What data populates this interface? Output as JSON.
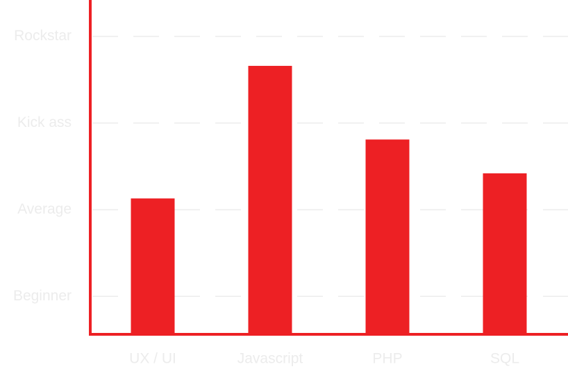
{
  "chart_data": {
    "type": "bar",
    "categories": [
      "UX / UI",
      "Javascript",
      "PHP",
      "SQL"
    ],
    "values": [
      2.13,
      3.66,
      2.81,
      2.42
    ],
    "color": "#ed2024",
    "ylim": [
      0.57,
      4.42
    ],
    "yticks": [
      {
        "value": 1,
        "label": "Beginner"
      },
      {
        "value": 2,
        "label": "Average"
      },
      {
        "value": 3,
        "label": "Kick ass"
      },
      {
        "value": 4,
        "label": "Rockstar"
      }
    ],
    "grid": true
  }
}
